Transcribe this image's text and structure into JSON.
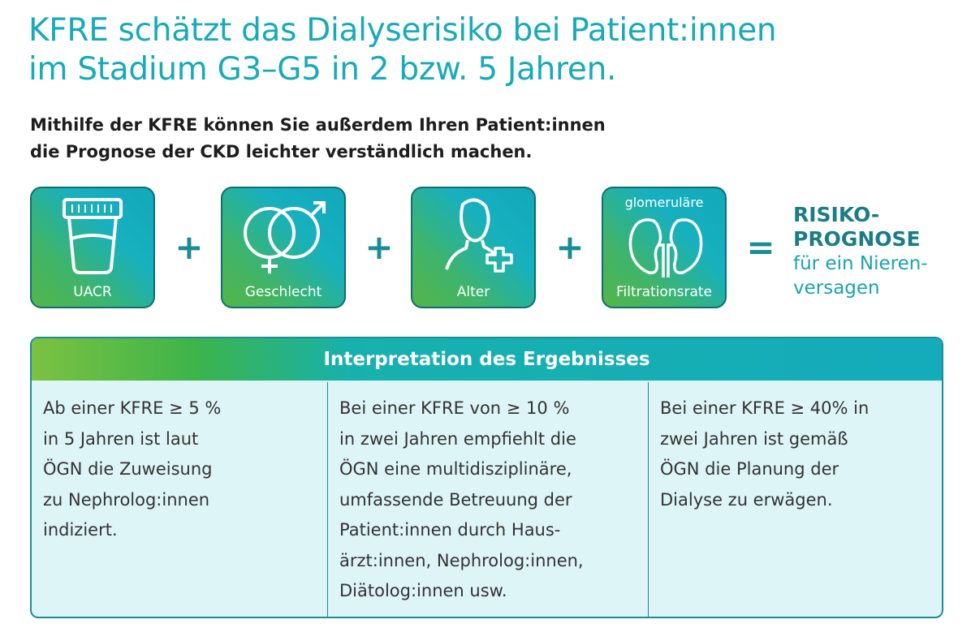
{
  "title_lines": [
    "KFRE schätzt das Dialyserisiko bei Patient:innen",
    "im Stadium G3–G5 in 2 bzw. 5 Jahren."
  ],
  "subtitle_lines": [
    "Mithilfe der KFRE können Sie außerdem Ihren Patient:innen",
    "die Prognose der CKD leichter verständlich machen."
  ],
  "factors": [
    {
      "label": "UACR"
    },
    {
      "label": "Geschlecht"
    },
    {
      "label": "Alter"
    },
    {
      "top_label": "glomeruläre",
      "label": "Filtrationsrate"
    }
  ],
  "operators": [
    "+",
    "+",
    "+",
    "="
  ],
  "result": {
    "heading_lines": [
      "RISIKO-",
      "PROGNOSE"
    ],
    "text_lines": [
      "für ein Nieren-",
      "versagen"
    ]
  },
  "table": {
    "header": "Interpretation des Ergebnisses",
    "cells": [
      [
        "Ab einer KFRE ≥ 5 %",
        "in 5 Jahren ist laut",
        "ÖGN die Zuweisung",
        "zu Nephrolog:innen",
        "indiziert."
      ],
      [
        "Bei einer KFRE von ≥ 10 %",
        "in zwei Jahren empfiehlt die",
        "ÖGN eine multidisziplinäre,",
        "umfassende Betreuung der",
        "Patient:innen durch Haus-",
        "ärzt:innen, Nephrolog:innen,",
        "Diätolog:innen usw."
      ],
      [
        "Bei einer KFRE ≥ 40% in",
        "zwei Jahren ist gemäß",
        "ÖGN die Planung der",
        "Dialyse zu erwägen."
      ]
    ]
  }
}
